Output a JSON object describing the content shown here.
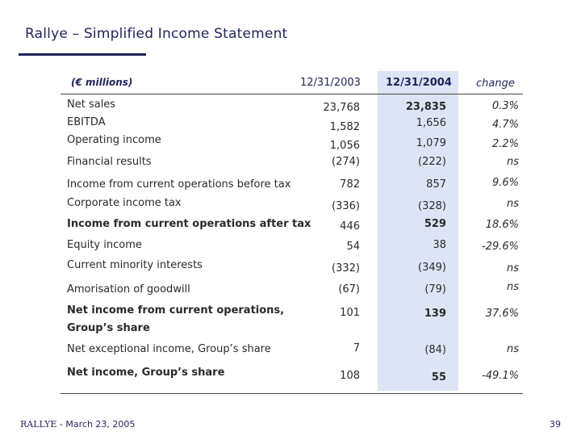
{
  "title": "Rallye – Simplified Income Statement",
  "header": {
    "units": "(€ millions)",
    "col_2003": "12/31/2003",
    "col_2004": "12/31/2004",
    "col_change": "change"
  },
  "rows": [
    {
      "label": "Net sales",
      "v2003": "23,768",
      "v2004": "23,835",
      "change": "0.3%"
    },
    {
      "label": "EBITDA",
      "v2003": "1,582",
      "v2004": "1,656",
      "change": "4.7%"
    },
    {
      "label": "Operating income",
      "v2003": "1,056",
      "v2004": "1,079",
      "change": "2.2%"
    },
    {
      "label": "Financial results",
      "v2003": "(274)",
      "v2004": "(222)",
      "change": "ns"
    },
    {
      "label": "Income from current operations before tax",
      "v2003": "782",
      "v2004": "857",
      "change": "9.6%"
    },
    {
      "label": "Corporate income tax",
      "v2003": "(336)",
      "v2004": "(328)",
      "change": "ns"
    },
    {
      "label": "Income from current operations after tax",
      "v2003": "446",
      "v2004": "529",
      "change": "18.6%"
    },
    {
      "label": "Equity income",
      "v2003": "54",
      "v2004": "38",
      "change": "-29.6%"
    },
    {
      "label": "Current minority interests",
      "v2003": "(332)",
      "v2004": "(349)",
      "change": "ns"
    },
    {
      "label": "Amorisation of goodwill",
      "v2003": "(67)",
      "v2004": "(79)",
      "change": "ns"
    },
    {
      "label": "Net income from current operations,",
      "label2": "Group’s share",
      "v2003": "101",
      "v2004": "139",
      "change": "37.6%"
    },
    {
      "label": "Net exceptional income, Group’s share",
      "v2003": "7",
      "v2004": "(84)",
      "change": "ns"
    },
    {
      "label": "Net income, Group’s share",
      "v2003": "108",
      "v2004": "55",
      "change": "-49.1%"
    }
  ],
  "footer": {
    "brand": "RALLYE",
    "date": " - March 23, 2005",
    "page": "39"
  }
}
